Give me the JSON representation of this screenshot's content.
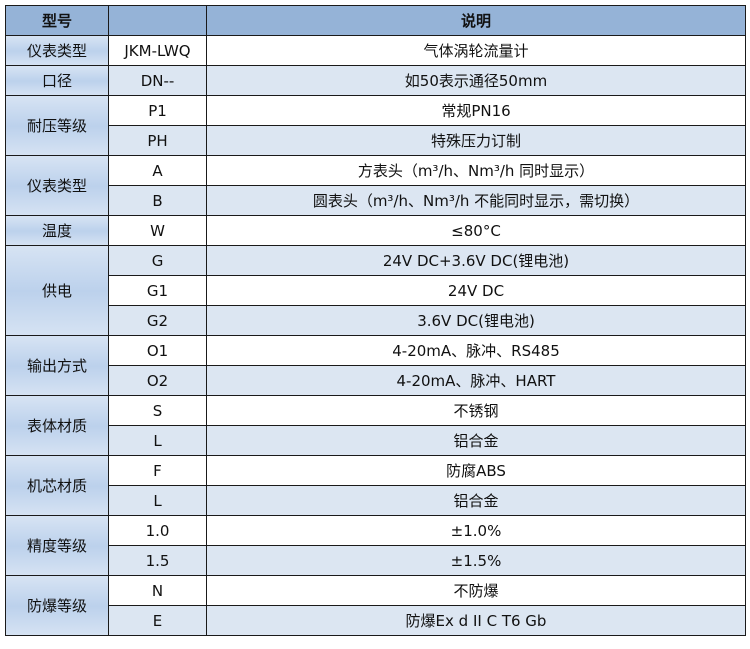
{
  "header": {
    "col1": "型号",
    "col2": "",
    "col3": "说明"
  },
  "colors": {
    "header": "#95b3d7",
    "group": "#c5d9f1",
    "alt_row": "#dce6f2"
  },
  "groups": [
    {
      "label": "仪表类型",
      "rows": [
        {
          "code": "JKM-LWQ",
          "desc": "气体涡轮流量计"
        }
      ]
    },
    {
      "label": "口径",
      "rows": [
        {
          "code": "DN--",
          "desc": "如50表示通径50mm"
        }
      ]
    },
    {
      "label": "耐压等级",
      "rows": [
        {
          "code": "P1",
          "desc": "常规PN16"
        },
        {
          "code": "PH",
          "desc": "特殊压力订制"
        }
      ]
    },
    {
      "label": "仪表类型",
      "rows": [
        {
          "code": "A",
          "desc": "方表头（m³/h、Nm³/h 同时显示）"
        },
        {
          "code": "B",
          "desc": "圆表头（m³/h、Nm³/h 不能同时显示，需切换）"
        }
      ]
    },
    {
      "label": "温度",
      "rows": [
        {
          "code": "W",
          "desc": "≤80°C"
        }
      ]
    },
    {
      "label": "供电",
      "rows": [
        {
          "code": "G",
          "desc": "24V DC+3.6V DC(锂电池)"
        },
        {
          "code": "G1",
          "desc": "24V DC"
        },
        {
          "code": "G2",
          "desc": "3.6V DC(锂电池)"
        }
      ]
    },
    {
      "label": "输出方式",
      "rows": [
        {
          "code": "O1",
          "desc": "4-20mA、脉冲、RS485"
        },
        {
          "code": "O2",
          "desc": "4-20mA、脉冲、HART"
        }
      ]
    },
    {
      "label": "表体材质",
      "rows": [
        {
          "code": "S",
          "desc": "不锈钢"
        },
        {
          "code": "L",
          "desc": "铝合金"
        }
      ]
    },
    {
      "label": "机芯材质",
      "rows": [
        {
          "code": "F",
          "desc": "防腐ABS"
        },
        {
          "code": "L",
          "desc": "铝合金"
        }
      ]
    },
    {
      "label": "精度等级",
      "rows": [
        {
          "code": "1.0",
          "desc": "±1.0%"
        },
        {
          "code": "1.5",
          "desc": "±1.5%"
        }
      ]
    },
    {
      "label": "防爆等级",
      "rows": [
        {
          "code": "N",
          "desc": "不防爆"
        },
        {
          "code": "E",
          "desc": "防爆Ex d II C T6 Gb"
        }
      ]
    }
  ]
}
